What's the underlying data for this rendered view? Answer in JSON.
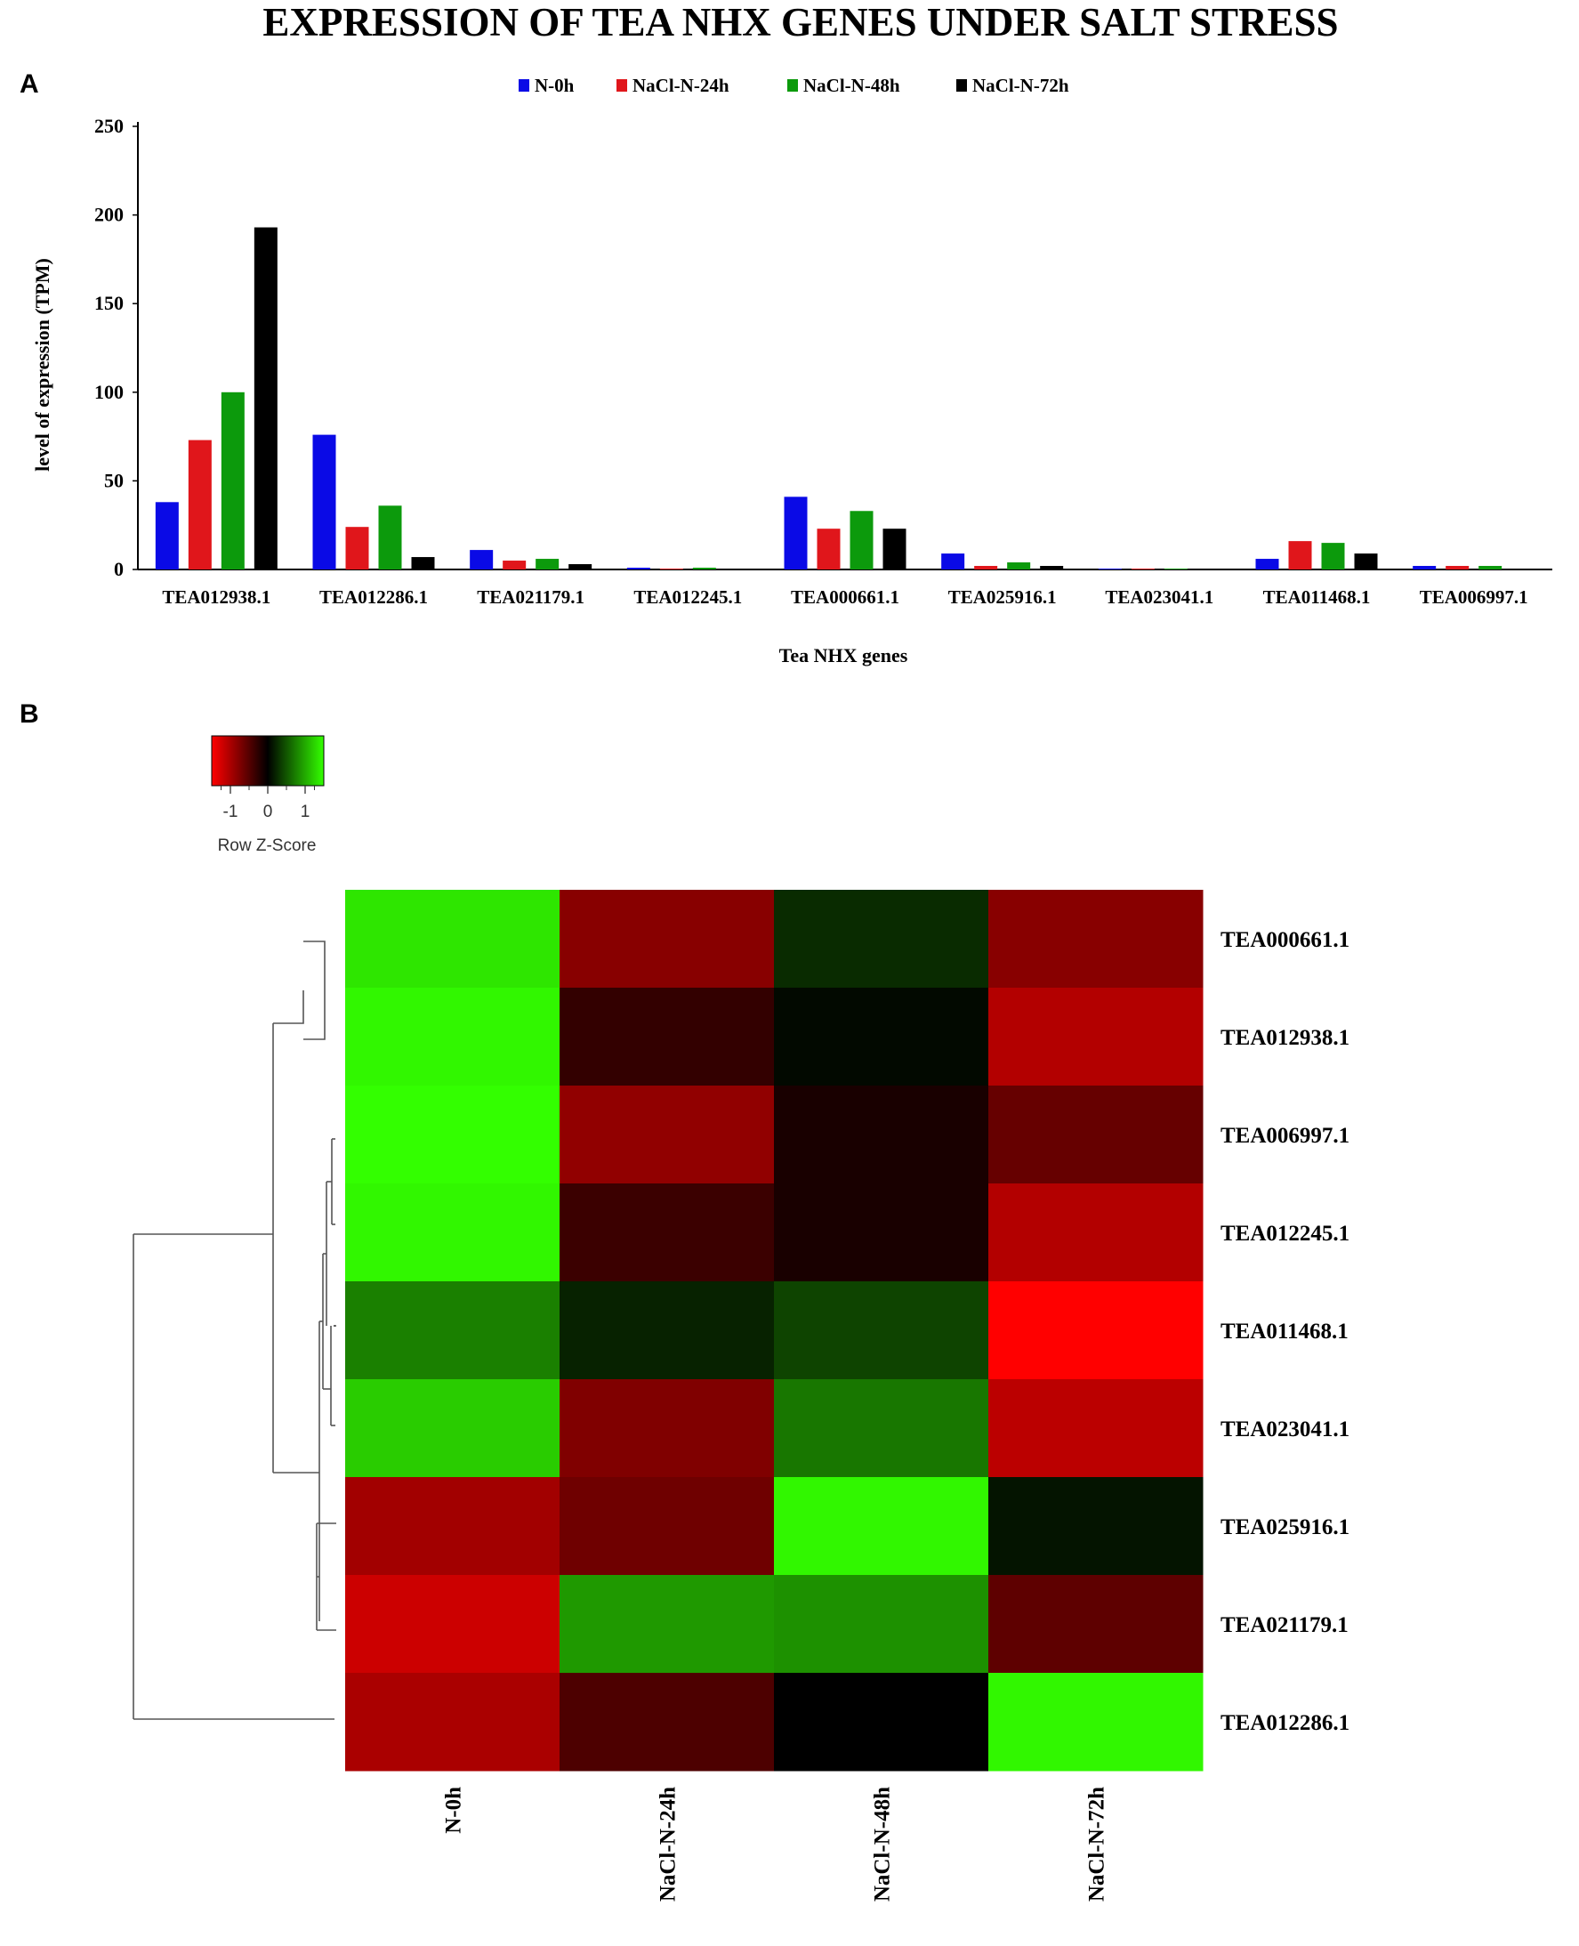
{
  "figure": {
    "title": "EXPRESSION OF TEA NHX GENES UNDER SALT STRESS",
    "panel_a_label": "A",
    "panel_b_label": "B"
  },
  "colors": {
    "N-0h": "#0a0ae6",
    "NaCl-N-24h": "#e0161b",
    "NaCl-N-48h": "#0c9a0c",
    "NaCl-N-72h": "#000000",
    "axis": "#000000"
  },
  "chart_data": [
    {
      "type": "bar",
      "xlabel": "Tea NHX genes",
      "ylabel": "level of expression (TPM)",
      "ylim": [
        0,
        250
      ],
      "yticks": [
        "0",
        "50",
        "100",
        "150",
        "200",
        "250"
      ],
      "legend_position": "top-center",
      "categories": [
        "TEA012938.1",
        "TEA012286.1",
        "TEA021179.1",
        "TEA012245.1",
        "TEA000661.1",
        "TEA025916.1",
        "TEA023041.1",
        "TEA011468.1",
        "TEA006997.1"
      ],
      "series": [
        {
          "name": "N-0h",
          "values": [
            38,
            76,
            11,
            1,
            41,
            9,
            0.5,
            6,
            2
          ]
        },
        {
          "name": "NaCl-N-24h",
          "values": [
            73,
            24,
            5,
            0.5,
            23,
            2,
            0.3,
            16,
            2
          ]
        },
        {
          "name": "NaCl-N-48h",
          "values": [
            100,
            36,
            6,
            1,
            33,
            4,
            0.3,
            15,
            2
          ]
        },
        {
          "name": "NaCl-N-72h",
          "values": [
            193,
            7,
            3,
            0.5,
            23,
            2,
            0.3,
            9,
            0.5
          ]
        }
      ]
    },
    {
      "type": "heatmap",
      "color_key": {
        "title": "Row Z-Score",
        "ticks": [
          "-1",
          "0",
          "1"
        ],
        "range": [
          -1.5,
          1.5
        ],
        "low_color": "#ff0000",
        "mid_color": "#000000",
        "high_color": "#33ff00"
      },
      "columns": [
        "N-0h",
        "NaCl-N-24h",
        "NaCl-N-48h",
        "NaCl-N-72h"
      ],
      "rows": [
        "TEA000661.1",
        "TEA012938.1",
        "TEA006997.1",
        "TEA012245.1",
        "TEA011468.1",
        "TEA023041.1",
        "TEA025916.1",
        "TEA021179.1",
        "TEA012286.1"
      ],
      "values": [
        [
          1.35,
          -0.8,
          0.25,
          -0.8
        ],
        [
          1.45,
          -0.3,
          0.05,
          -1.05
        ],
        [
          1.5,
          -0.85,
          -0.15,
          -0.6
        ],
        [
          1.45,
          -0.35,
          -0.15,
          -1.05
        ],
        [
          0.75,
          0.2,
          0.4,
          -1.5
        ],
        [
          1.2,
          -0.75,
          0.7,
          -1.1
        ],
        [
          -0.95,
          -0.65,
          1.45,
          0.12
        ],
        [
          -1.2,
          0.9,
          0.85,
          -0.55
        ],
        [
          -1.0,
          -0.45,
          0.0,
          1.45
        ]
      ]
    }
  ]
}
